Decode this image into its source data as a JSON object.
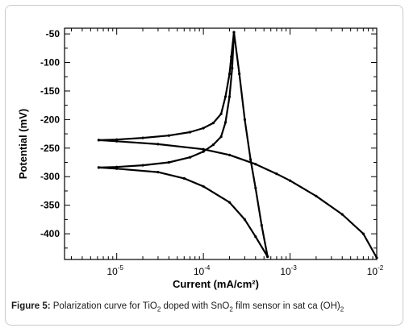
{
  "chart_data": {
    "type": "line",
    "xlabel": "Current (mA/cm²)",
    "ylabel": "Potential (mV)",
    "x_scale": "log",
    "xlim": [
      2.5e-06,
      0.01
    ],
    "ylim": [
      -445,
      -40
    ],
    "grid": false,
    "x_ticks": [
      1e-05,
      0.0001,
      0.001,
      0.01
    ],
    "x_tick_labels": [
      {
        "base": "10",
        "exp": "-5"
      },
      {
        "base": "10",
        "exp": "-4"
      },
      {
        "base": "10",
        "exp": "-3"
      },
      {
        "base": "10",
        "exp": "-2"
      }
    ],
    "y_ticks": [
      -50,
      -100,
      -150,
      -200,
      -250,
      -300,
      -350,
      -400
    ],
    "y_tick_labels": [
      "-50",
      "-100",
      "-150",
      "-200",
      "-250",
      "-300",
      "-350",
      "-400"
    ],
    "series": [
      {
        "points": [
          [
            6.2e-06,
            -236
          ],
          [
            1e-05,
            -235
          ],
          [
            2e-05,
            -232
          ],
          [
            4e-05,
            -228
          ],
          [
            7e-05,
            -222
          ],
          [
            0.0001,
            -215
          ],
          [
            0.00013,
            -206
          ],
          [
            0.00016,
            -190
          ],
          [
            0.00018,
            -160
          ],
          [
            0.0002,
            -120
          ],
          [
            0.00021,
            -90
          ],
          [
            0.000225,
            -47
          ],
          [
            0.00026,
            -120
          ],
          [
            0.0003,
            -200
          ],
          [
            0.00035,
            -270
          ],
          [
            0.0004,
            -320
          ],
          [
            0.00047,
            -385
          ],
          [
            0.00055,
            -440
          ]
        ]
      },
      {
        "points": [
          [
            6.2e-06,
            -236
          ],
          [
            1e-05,
            -238
          ],
          [
            3e-05,
            -243
          ],
          [
            0.0001,
            -252
          ],
          [
            0.0002,
            -262
          ],
          [
            0.0004,
            -278
          ],
          [
            0.0007,
            -295
          ],
          [
            0.001,
            -307
          ],
          [
            0.002,
            -334
          ],
          [
            0.004,
            -366
          ],
          [
            0.007,
            -400
          ],
          [
            0.01,
            -442
          ]
        ]
      },
      {
        "points": [
          [
            6.2e-06,
            -284
          ],
          [
            1e-05,
            -283
          ],
          [
            2e-05,
            -280
          ],
          [
            4e-05,
            -275
          ],
          [
            7e-05,
            -266
          ],
          [
            0.0001,
            -256
          ],
          [
            0.00013,
            -244
          ],
          [
            0.00016,
            -230
          ],
          [
            0.00018,
            -205
          ],
          [
            0.0002,
            -160
          ],
          [
            0.000215,
            -110
          ],
          [
            0.000225,
            -47
          ]
        ]
      },
      {
        "points": [
          [
            6.2e-06,
            -284
          ],
          [
            1e-05,
            -286
          ],
          [
            3e-05,
            -292
          ],
          [
            6e-05,
            -303
          ],
          [
            0.0001,
            -317
          ],
          [
            0.0002,
            -345
          ],
          [
            0.0003,
            -375
          ],
          [
            0.0004,
            -405
          ],
          [
            0.00055,
            -440
          ]
        ]
      }
    ]
  },
  "caption": {
    "label": "Figure 5:",
    "text_1": " Polarization curve for TiO",
    "sub_1": "2",
    "text_2": " doped with SnO",
    "sub_2": "2",
    "text_3": " film sensor in sat ca (OH)",
    "sub_3": "2"
  }
}
